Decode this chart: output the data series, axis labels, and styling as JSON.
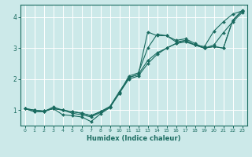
{
  "title": "",
  "xlabel": "Humidex (Indice chaleur)",
  "xlim": [
    -0.5,
    23.5
  ],
  "ylim": [
    0.5,
    4.4
  ],
  "xticks": [
    0,
    1,
    2,
    3,
    4,
    5,
    6,
    7,
    8,
    9,
    10,
    11,
    12,
    13,
    14,
    15,
    16,
    17,
    18,
    19,
    20,
    21,
    22,
    23
  ],
  "yticks": [
    1,
    2,
    3,
    4
  ],
  "bg_color": "#cce9e9",
  "line_color": "#1a6b60",
  "grid_color": "#ffffff",
  "lines": [
    {
      "x": [
        0,
        1,
        2,
        3,
        4,
        5,
        6,
        7,
        8,
        9,
        10,
        11,
        12,
        13,
        14,
        15,
        16,
        17,
        18,
        19,
        20,
        21,
        22,
        23
      ],
      "y": [
        1.05,
        0.95,
        0.95,
        1.05,
        0.85,
        0.82,
        0.78,
        0.63,
        0.88,
        1.08,
        1.55,
        2.05,
        2.15,
        3.52,
        3.4,
        3.4,
        3.2,
        3.25,
        3.1,
        3.05,
        3.55,
        3.85,
        4.1,
        4.2
      ]
    },
    {
      "x": [
        0,
        1,
        2,
        3,
        4,
        5,
        6,
        7,
        8,
        9,
        10,
        11,
        12,
        13,
        14,
        15,
        16,
        17,
        18,
        19,
        20,
        21,
        22,
        23
      ],
      "y": [
        1.05,
        0.95,
        0.95,
        1.1,
        1.0,
        0.9,
        0.85,
        0.78,
        0.92,
        1.1,
        1.55,
        2.1,
        2.2,
        3.0,
        3.45,
        3.4,
        3.25,
        3.3,
        3.15,
        3.0,
        3.1,
        3.5,
        3.85,
        4.15
      ]
    },
    {
      "x": [
        0,
        1,
        2,
        3,
        4,
        5,
        6,
        7,
        8,
        9,
        10,
        11,
        12,
        13,
        14,
        15,
        16,
        17,
        18,
        19,
        20,
        21,
        22,
        23
      ],
      "y": [
        1.05,
        1.0,
        0.97,
        1.05,
        1.0,
        0.95,
        0.9,
        0.82,
        0.95,
        1.1,
        1.55,
        2.0,
        2.1,
        2.5,
        2.8,
        3.0,
        3.15,
        3.2,
        3.1,
        3.0,
        3.05,
        3.0,
        3.9,
        4.2
      ]
    },
    {
      "x": [
        0,
        1,
        2,
        3,
        4,
        5,
        6,
        7,
        8,
        9,
        10,
        11,
        12,
        13,
        14,
        15,
        16,
        17,
        18,
        19,
        20,
        21,
        22,
        23
      ],
      "y": [
        1.05,
        1.0,
        0.97,
        1.05,
        1.0,
        0.95,
        0.9,
        0.82,
        0.95,
        1.12,
        1.6,
        2.05,
        2.15,
        2.6,
        2.85,
        3.0,
        3.15,
        3.25,
        3.1,
        3.0,
        3.05,
        3.0,
        3.9,
        4.22
      ]
    }
  ]
}
